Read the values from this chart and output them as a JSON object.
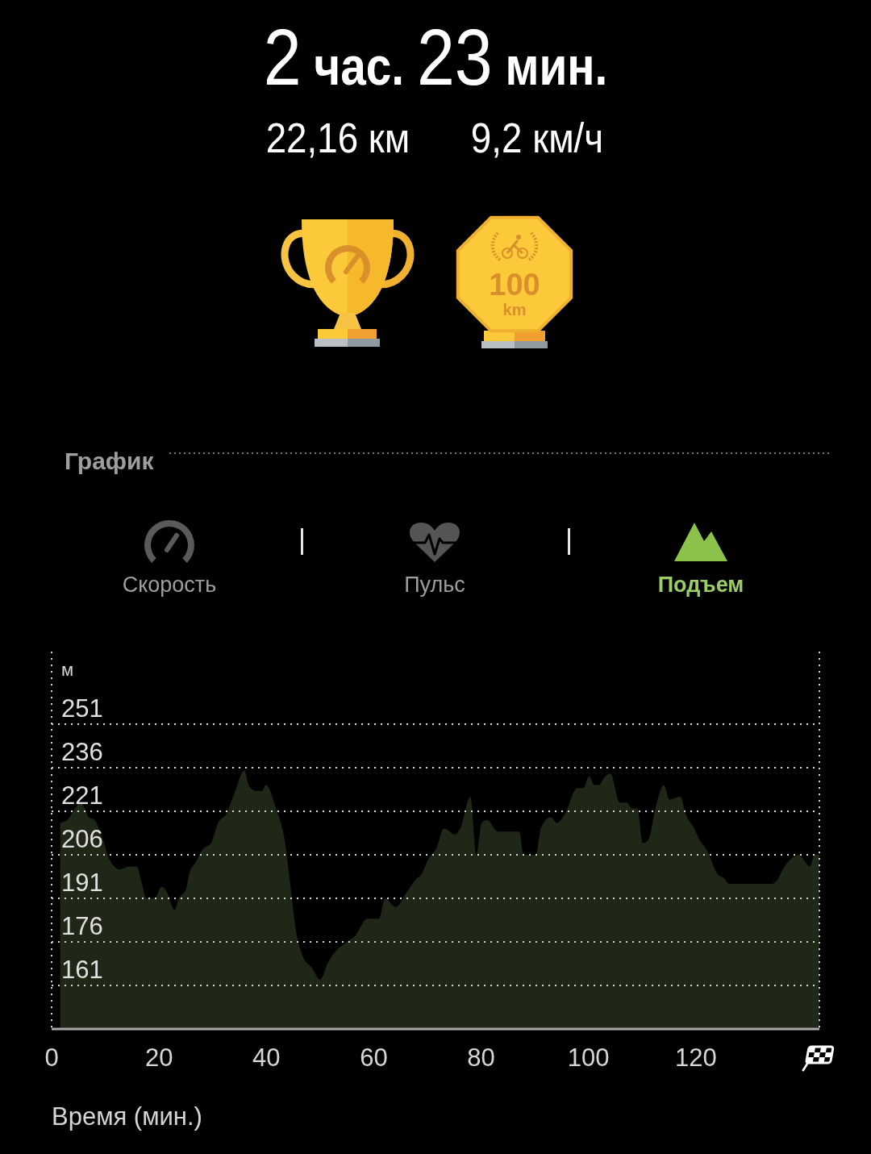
{
  "chart_data": {
    "type": "area",
    "title": "2 час. 23 мин.",
    "xlabel": "Время (мин.)",
    "ylabel": "м",
    "annotations": [
      "22,16 км",
      "9,2 км/ч",
      "100",
      "km",
      "График",
      "Скорость",
      "Пульс",
      "Подъем"
    ],
    "x": [
      1.6,
      2.9,
      4.4,
      5.4,
      6.2,
      6.9,
      8.0,
      9.4,
      10.9,
      12.7,
      14.4,
      15.9,
      16.7,
      17.7,
      19.2,
      20.5,
      21.5,
      22.9,
      23.7,
      25.0,
      25.7,
      26.7,
      28.2,
      29.7,
      31.0,
      32.5,
      34.0,
      35.9,
      36.7,
      38.0,
      39.2,
      39.9,
      41.8,
      43.5,
      44.5,
      45.5,
      46.8,
      48.5,
      50.0,
      51.5,
      53.0,
      55.0,
      56.5,
      58.8,
      61.0,
      62.1,
      64.1,
      66.1,
      68.1,
      68.8,
      70.3,
      71.6,
      73.1,
      75.1,
      76.1,
      78.0,
      79.1,
      80.1,
      81.1,
      83.1,
      87.1,
      87.9,
      90.2,
      91.1,
      92.9,
      94.1,
      95.6,
      97.9,
      99.1,
      100.1,
      101.1,
      101.9,
      103.1,
      104.1,
      105.8,
      107.1,
      108.1,
      109.1,
      110.1,
      111.1,
      112.6,
      114.0,
      115.1,
      117.1,
      118.1,
      119.7,
      120.7,
      121.9,
      124.2,
      125.2,
      126.2,
      134.2,
      135.0,
      136.5,
      138.0,
      139.2,
      140.2,
      141.2,
      142.1,
      143.0
    ],
    "values": [
      217,
      218,
      222,
      224,
      222,
      219,
      218,
      212,
      204,
      201,
      202,
      202,
      197,
      191,
      191,
      195,
      193,
      187,
      191,
      194,
      200,
      203,
      208,
      210,
      217,
      220,
      227,
      235,
      230,
      228,
      228,
      230,
      222,
      210,
      195,
      180,
      171,
      167,
      163,
      169,
      173,
      176,
      178,
      184,
      184,
      191,
      188,
      193,
      198,
      199,
      205,
      208,
      215,
      213,
      215,
      226,
      206,
      217,
      218,
      214,
      214,
      206,
      206,
      215,
      219,
      217,
      220,
      229,
      229,
      233,
      230,
      230,
      233,
      234,
      224,
      224,
      222,
      222,
      210,
      211,
      223,
      230,
      225,
      226,
      220,
      215,
      211,
      208,
      199,
      198,
      196,
      196,
      197,
      202,
      205,
      206,
      204,
      202,
      206,
      206
    ],
    "color": "#1f2716",
    "xlim": [
      0,
      143
    ],
    "ylim": [
      146,
      276
    ],
    "xticks": [
      0,
      20,
      40,
      60,
      80,
      100,
      120
    ],
    "yticks": [
      161,
      176,
      191,
      206,
      221,
      236,
      251
    ],
    "grid": "y"
  }
}
